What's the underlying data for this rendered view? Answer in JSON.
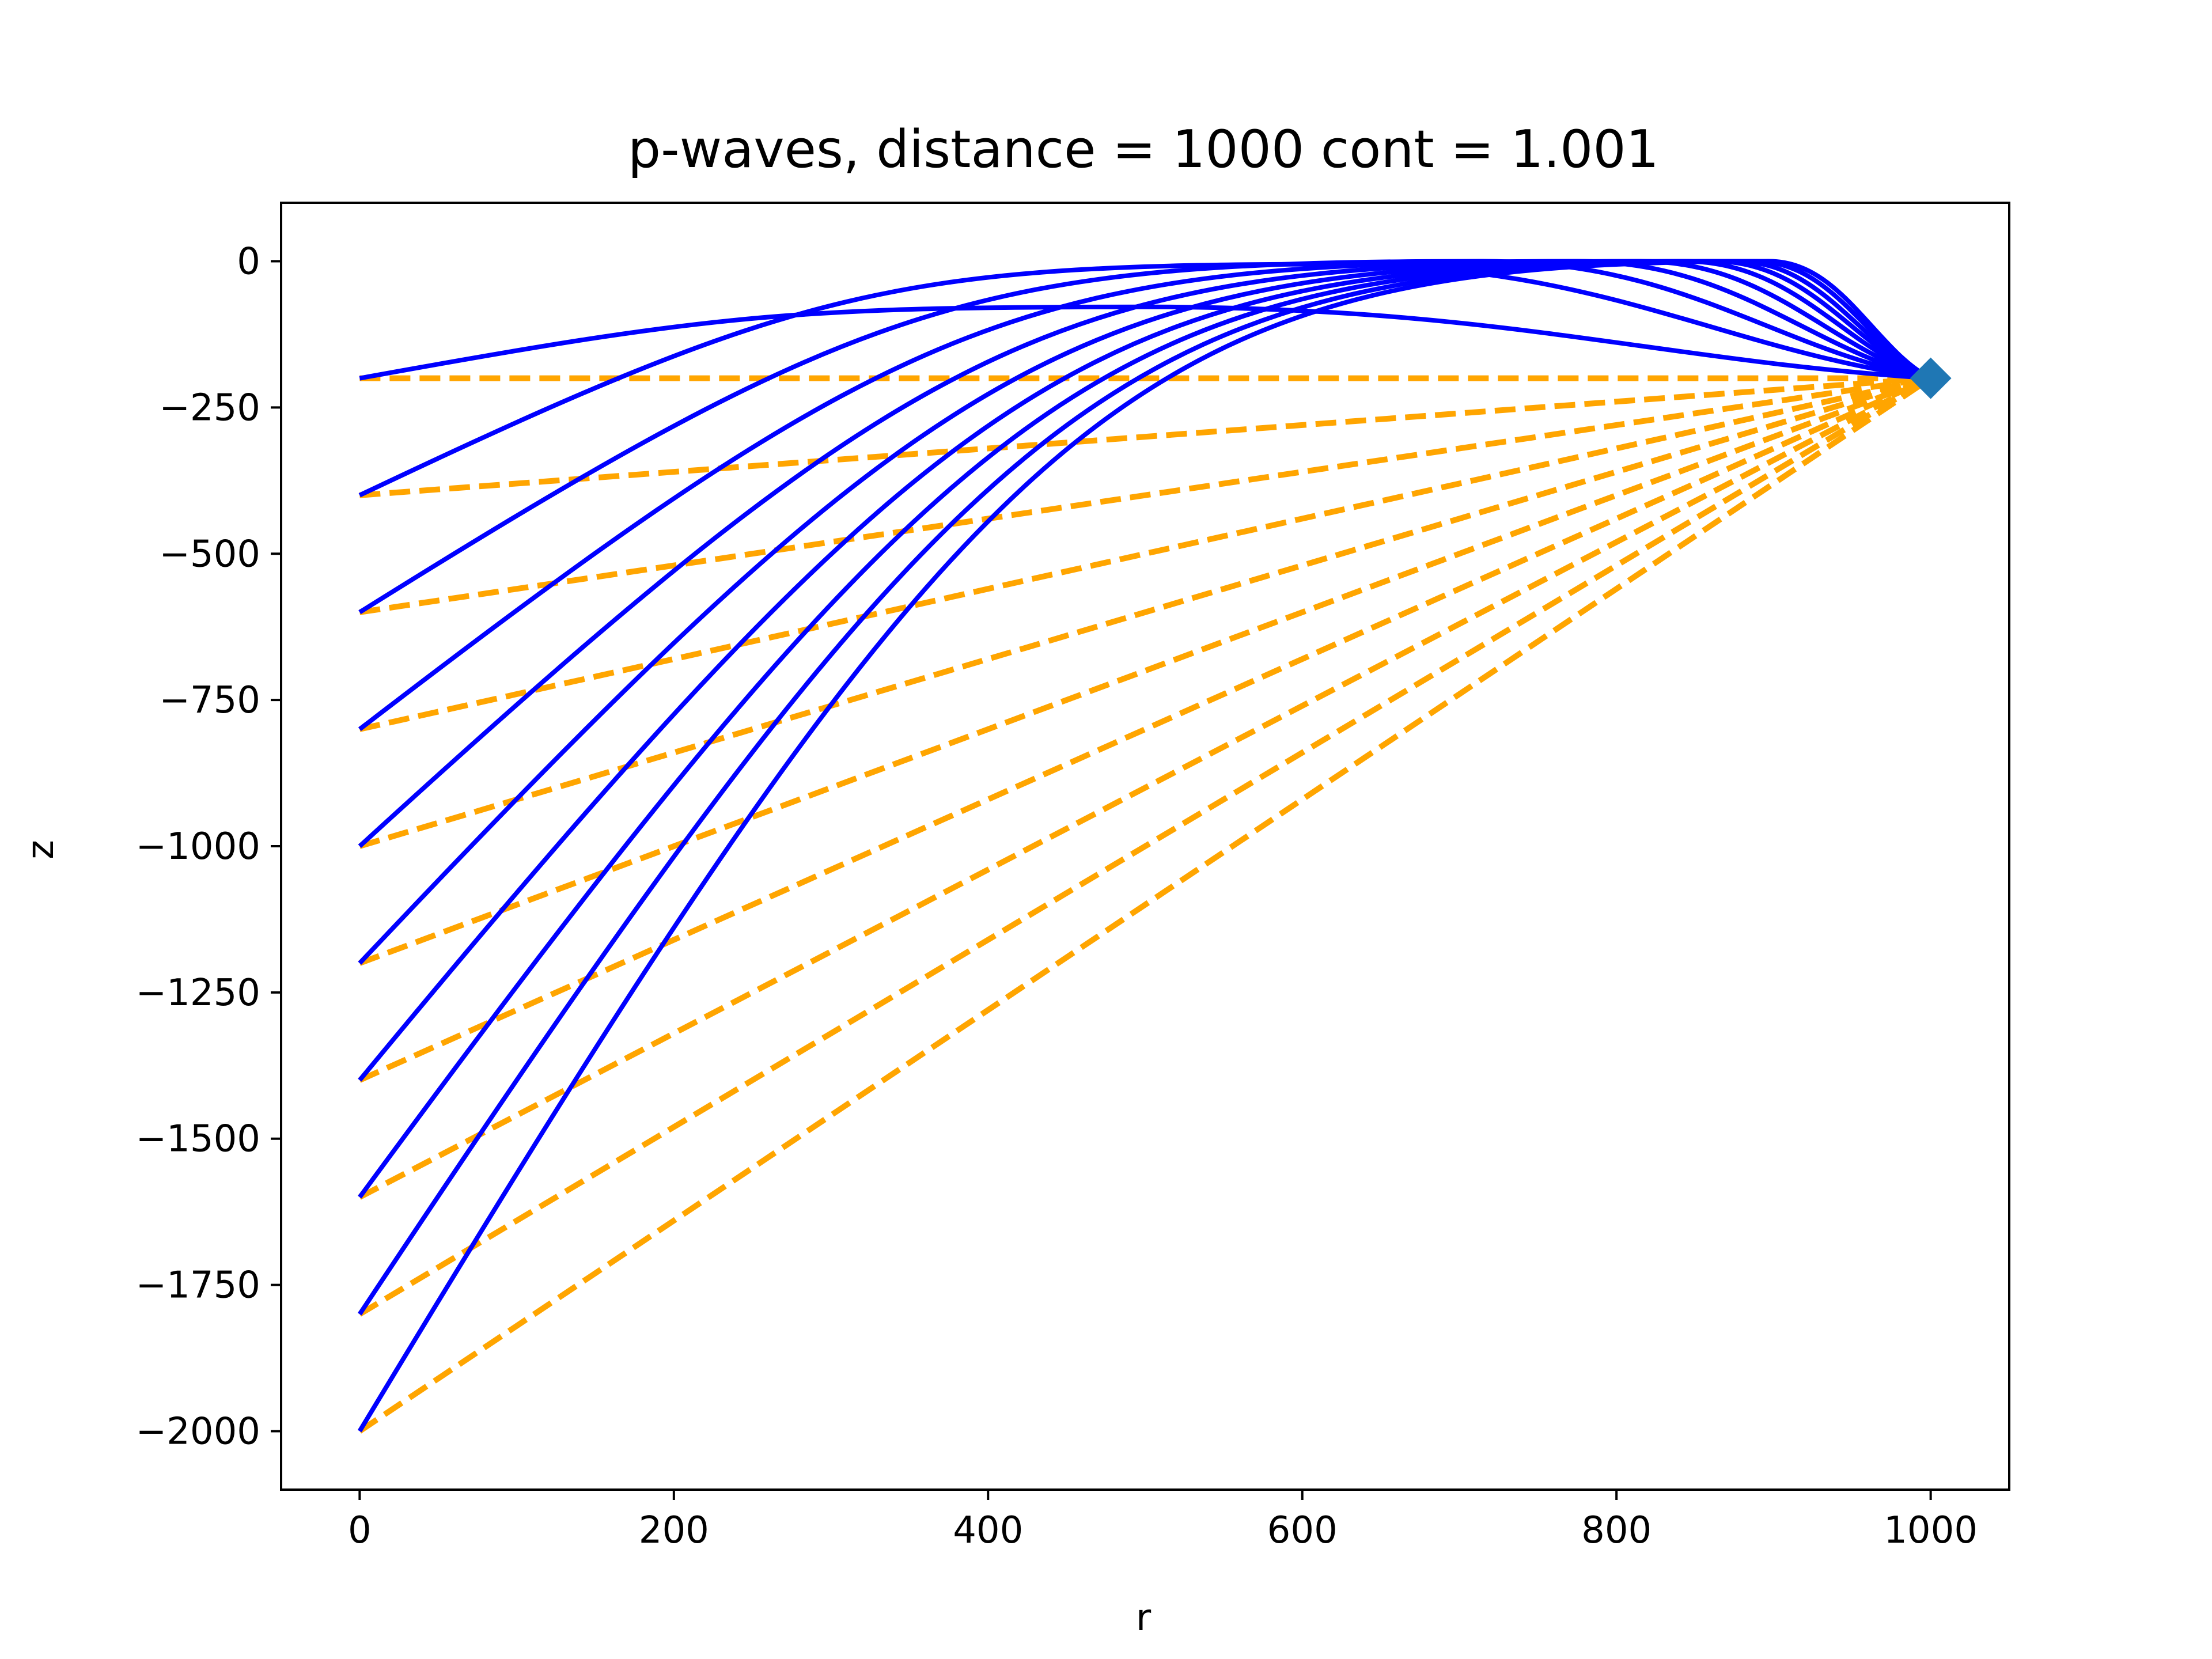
{
  "chart_data": {
    "type": "line",
    "title": "p-waves, distance = 1000 cont = 1.001",
    "xlabel": "r",
    "ylabel": "z",
    "xlim": [
      -50,
      1050
    ],
    "ylim": [
      -2100,
      100
    ],
    "xticks": [
      0,
      200,
      400,
      600,
      800,
      1000
    ],
    "yticks": [
      0,
      -250,
      -500,
      -750,
      -1000,
      -1250,
      -1500,
      -1750,
      -2000
    ],
    "grid": false,
    "receiver": {
      "r": 1000,
      "z": -200,
      "marker": "diamond",
      "color": "#1f77b4"
    },
    "ray_color": "#0000ff",
    "straight_color": "#ffa500",
    "sources": [
      {
        "r": 0,
        "z": -200,
        "apex": {
          "r": 500,
          "z": -78
        }
      },
      {
        "r": 0,
        "z": -400,
        "apex": {
          "r": 620,
          "z": -5
        }
      },
      {
        "r": 0,
        "z": -600,
        "apex": {
          "r": 715,
          "z": 0
        }
      },
      {
        "r": 0,
        "z": -800,
        "apex": {
          "r": 775,
          "z": 0
        }
      },
      {
        "r": 0,
        "z": -1000,
        "apex": {
          "r": 815,
          "z": 0
        }
      },
      {
        "r": 0,
        "z": -1200,
        "apex": {
          "r": 843,
          "z": 0
        }
      },
      {
        "r": 0,
        "z": -1400,
        "apex": {
          "r": 862,
          "z": 0
        }
      },
      {
        "r": 0,
        "z": -1600,
        "apex": {
          "r": 876,
          "z": 0
        }
      },
      {
        "r": 0,
        "z": -1800,
        "apex": {
          "r": 888,
          "z": 0
        }
      },
      {
        "r": 0,
        "z": -2000,
        "apex": {
          "r": 897,
          "z": 0
        }
      }
    ]
  }
}
